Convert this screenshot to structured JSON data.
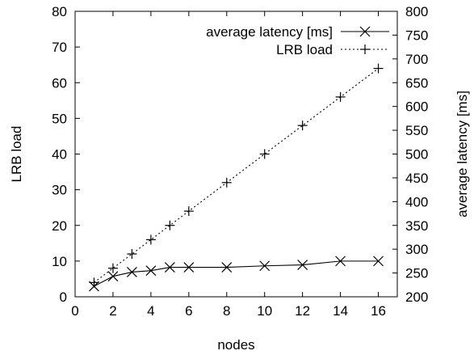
{
  "chart_data": {
    "type": "line",
    "title": "",
    "xlabel": "nodes",
    "ylabel_left": "LRB load",
    "ylabel_right": "average latency [ms]",
    "x_ticks": [
      0,
      2,
      4,
      6,
      8,
      10,
      12,
      14,
      16
    ],
    "y_left_ticks": [
      0,
      10,
      20,
      30,
      40,
      50,
      60,
      70,
      80
    ],
    "y_right_ticks": [
      200,
      250,
      300,
      350,
      400,
      450,
      500,
      550,
      600,
      650,
      700,
      750,
      800
    ],
    "xlim": [
      0,
      17
    ],
    "ylim_left": [
      0,
      80
    ],
    "ylim_right": [
      200,
      800
    ],
    "grid": false,
    "legend_position": "top-right",
    "series": [
      {
        "name": "average latency [ms]",
        "axis": "right",
        "marker": "x",
        "line": "solid",
        "x": [
          1,
          2,
          3,
          4,
          5,
          6,
          8,
          10,
          12,
          14,
          16
        ],
        "y": [
          222,
          243,
          252,
          255,
          262,
          262,
          262,
          265,
          267,
          275,
          275
        ]
      },
      {
        "name": "LRB load",
        "axis": "left",
        "marker": "+",
        "line": "dotted",
        "x": [
          1,
          2,
          3,
          4,
          5,
          6,
          8,
          10,
          12,
          14,
          16
        ],
        "y": [
          4,
          8,
          12,
          16,
          20,
          24,
          32,
          40,
          48,
          56,
          64
        ]
      }
    ]
  }
}
